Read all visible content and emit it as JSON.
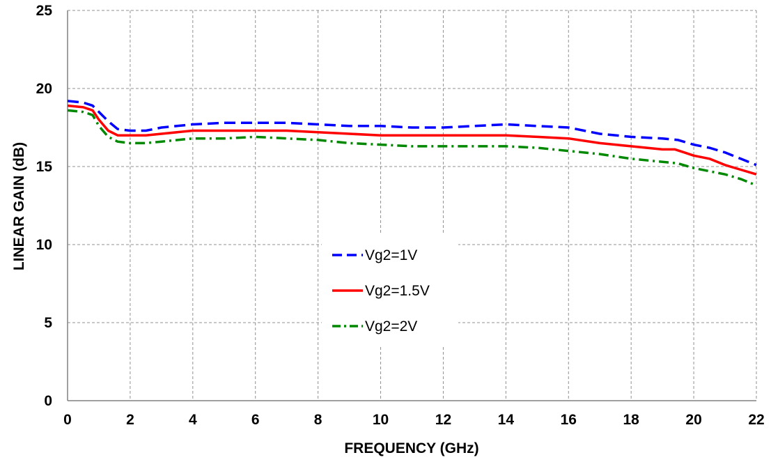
{
  "chart_data": {
    "type": "line",
    "title": "",
    "xlabel": "FREQUENCY (GHz)",
    "ylabel": "LINEAR GAIN (dB)",
    "xlim": [
      0,
      22
    ],
    "ylim": [
      0,
      25
    ],
    "xticks": [
      0,
      2,
      4,
      6,
      8,
      10,
      12,
      14,
      16,
      18,
      20,
      22
    ],
    "yticks": [
      0,
      5,
      10,
      15,
      20,
      25
    ],
    "grid": true,
    "legend_position": "center",
    "series": [
      {
        "name": "Vg2=1V",
        "color": "#0000ff",
        "style": "dashed",
        "x": [
          0,
          0.5,
          0.8,
          1.0,
          1.3,
          1.6,
          2.0,
          2.5,
          3,
          4,
          5,
          6,
          7,
          8,
          9,
          10,
          11,
          12,
          13,
          14,
          15,
          16,
          17,
          18,
          19,
          19.5,
          20,
          20.5,
          21,
          21.5,
          22
        ],
        "y": [
          19.2,
          19.1,
          18.9,
          18.5,
          17.9,
          17.4,
          17.3,
          17.3,
          17.5,
          17.7,
          17.8,
          17.8,
          17.8,
          17.7,
          17.6,
          17.6,
          17.5,
          17.5,
          17.6,
          17.7,
          17.6,
          17.5,
          17.1,
          16.9,
          16.8,
          16.7,
          16.4,
          16.2,
          15.9,
          15.5,
          15.1
        ]
      },
      {
        "name": "Vg2=1.5V",
        "color": "#ff0000",
        "style": "solid",
        "x": [
          0,
          0.5,
          0.8,
          1.0,
          1.3,
          1.6,
          2.0,
          2.5,
          3,
          4,
          5,
          6,
          7,
          8,
          9,
          10,
          11,
          12,
          13,
          14,
          15,
          16,
          17,
          18,
          19,
          19.4,
          19.7,
          20,
          20.5,
          21,
          21.5,
          22
        ],
        "y": [
          18.9,
          18.8,
          18.6,
          18.0,
          17.3,
          17.0,
          17.0,
          17.0,
          17.1,
          17.3,
          17.3,
          17.3,
          17.3,
          17.2,
          17.1,
          17.0,
          17.0,
          17.0,
          17.0,
          17.0,
          16.9,
          16.8,
          16.5,
          16.3,
          16.1,
          16.1,
          15.9,
          15.7,
          15.5,
          15.1,
          14.8,
          14.5
        ]
      },
      {
        "name": "Vg2=2V",
        "color": "#008800",
        "style": "dashdot",
        "x": [
          0,
          0.5,
          0.8,
          1.0,
          1.3,
          1.6,
          2.0,
          2.5,
          3,
          4,
          5,
          6,
          7,
          8,
          9,
          10,
          11,
          12,
          13,
          14,
          15,
          16,
          17,
          18,
          19,
          19.5,
          20,
          20.5,
          21,
          21.5,
          22
        ],
        "y": [
          18.6,
          18.5,
          18.3,
          17.6,
          16.9,
          16.6,
          16.5,
          16.5,
          16.6,
          16.8,
          16.8,
          16.9,
          16.8,
          16.7,
          16.5,
          16.4,
          16.3,
          16.3,
          16.3,
          16.3,
          16.2,
          16.0,
          15.8,
          15.5,
          15.3,
          15.2,
          14.9,
          14.7,
          14.5,
          14.2,
          13.8
        ]
      }
    ]
  }
}
